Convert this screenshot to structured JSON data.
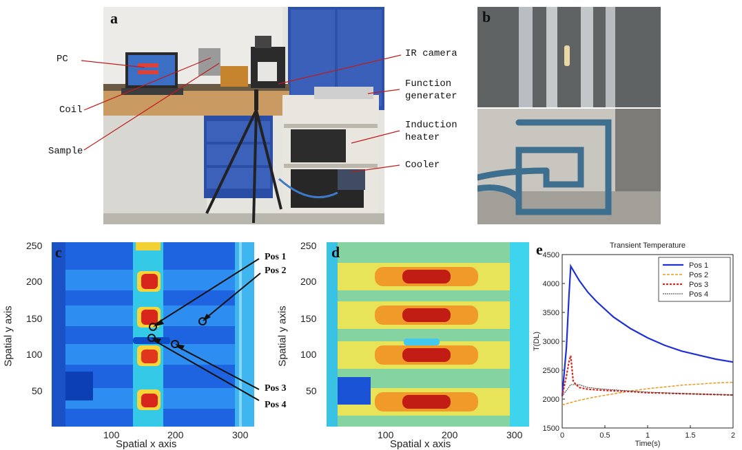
{
  "panel_a": {
    "letter": "a",
    "labels": {
      "pc": "PC",
      "coil": "Coil",
      "sample": "Sample",
      "ir_camera": "IR camera",
      "function_generator": "Function\ngenerater",
      "induction_heater": "Induction\nheater",
      "cooler": "Cooler"
    }
  },
  "panel_b": {
    "letter": "b"
  },
  "panel_c": {
    "letter": "c",
    "xlabel": "Spatial x axis",
    "ylabel": "Spatial y axis",
    "x_ticks": [
      "100",
      "200",
      "300"
    ],
    "y_ticks": [
      "250",
      "200",
      "150",
      "100",
      "50"
    ],
    "positions": [
      "Pos 1",
      "Pos 2",
      "Pos 3",
      "Pos 4"
    ]
  },
  "panel_d": {
    "letter": "d",
    "xlabel": "Spatial x axis",
    "ylabel": "Spatial y axis",
    "x_ticks": [
      "100",
      "200",
      "300"
    ],
    "y_ticks": [
      "250",
      "200",
      "150",
      "100",
      "50"
    ]
  },
  "panel_e": {
    "letter": "e"
  },
  "colors": {
    "pos1": "#1f2fd6",
    "pos2": "#e89a1a",
    "pos3": "#d9261c",
    "pos4": "#333333"
  },
  "chart_data": {
    "type": "line",
    "title": "Transient Temperature",
    "xlabel": "Time(s)",
    "ylabel": "T(DL)",
    "xlim": [
      0,
      2
    ],
    "ylim": [
      1500,
      4500
    ],
    "x_ticks": [
      "0",
      "0.5",
      "1",
      "1.5",
      "2"
    ],
    "y_ticks": [
      "4500",
      "4000",
      "3500",
      "3000",
      "2500",
      "2000",
      "1500"
    ],
    "legend": "top-right",
    "grid": false,
    "series": [
      {
        "name": "Pos 1",
        "style": "solid",
        "x": [
          0,
          0.05,
          0.08,
          0.1,
          0.2,
          0.3,
          0.4,
          0.6,
          0.8,
          1.0,
          1.2,
          1.4,
          1.6,
          1.8,
          2.0
        ],
        "y": [
          2050,
          2900,
          3800,
          4300,
          4050,
          3850,
          3690,
          3420,
          3220,
          3060,
          2930,
          2830,
          2760,
          2690,
          2640
        ]
      },
      {
        "name": "Pos 2",
        "style": "dashed",
        "x": [
          0,
          0.1,
          0.2,
          0.4,
          0.6,
          0.8,
          1.0,
          1.2,
          1.4,
          1.6,
          1.8,
          2.0
        ],
        "y": [
          1900,
          1940,
          1980,
          2040,
          2090,
          2140,
          2180,
          2210,
          2240,
          2260,
          2280,
          2290
        ]
      },
      {
        "name": "Pos 3",
        "style": "dotted",
        "x": [
          0,
          0.05,
          0.08,
          0.1,
          0.13,
          0.2,
          0.3,
          0.5,
          0.8,
          1.0,
          1.5,
          2.0
        ],
        "y": [
          2050,
          2400,
          2650,
          2750,
          2300,
          2200,
          2170,
          2150,
          2130,
          2110,
          2090,
          2070
        ]
      },
      {
        "name": "Pos 4",
        "style": "solid-thin",
        "x": [
          0,
          0.05,
          0.1,
          0.2,
          0.3,
          0.5,
          0.8,
          1.0,
          1.5,
          2.0
        ],
        "y": [
          2050,
          2150,
          2250,
          2250,
          2200,
          2170,
          2140,
          2120,
          2090,
          2070
        ]
      }
    ]
  }
}
